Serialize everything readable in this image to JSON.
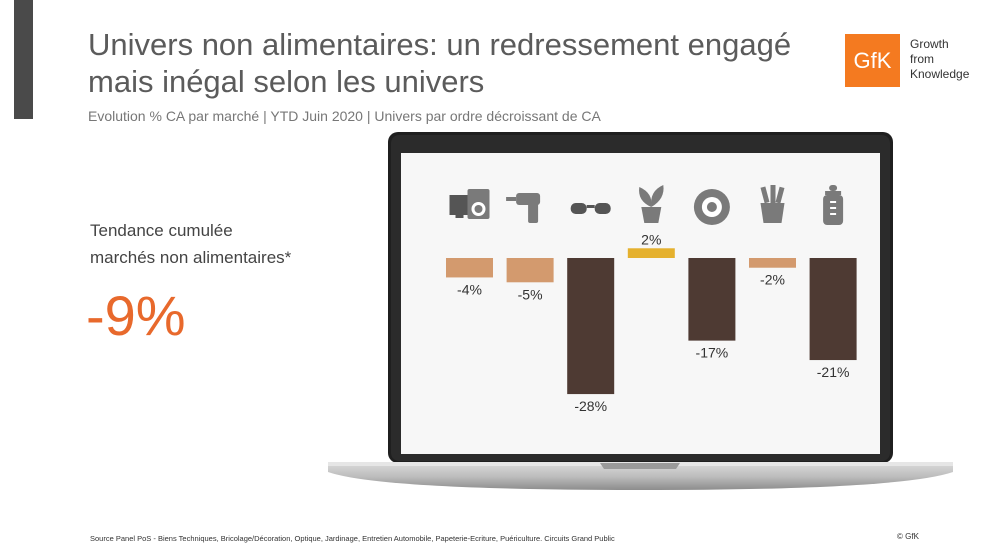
{
  "header": {
    "title": "Univers non alimentaires: un redressement engagé mais inégal selon les univers",
    "subtitle": "Evolution % CA par marché | YTD Juin 2020 | Univers par ordre décroissant de CA"
  },
  "logo": {
    "mark": "GfK",
    "line1": "Growth",
    "line2": "from",
    "line3": "Knowledge",
    "color": "#f47a20"
  },
  "trend": {
    "label_line1": "Tendance cumulée",
    "label_line2": "marchés non alimentaires*",
    "value": "-9%",
    "color": "#e8692c"
  },
  "chart_data": {
    "type": "bar",
    "categories": [
      "washing-machine-tv-icon",
      "drill-icon",
      "glasses-icon",
      "plant-icon",
      "tire-icon",
      "pencil-cup-icon",
      "baby-bottle-icon"
    ],
    "values": [
      -4,
      -5,
      -28,
      2,
      -17,
      -2,
      -21
    ],
    "labels": [
      "-4%",
      "-5%",
      "-28%",
      "2%",
      "-17%",
      "-2%",
      "-21%"
    ],
    "colors": [
      "#d39a6e",
      "#d39a6e",
      "#4e3a33",
      "#e5b12e",
      "#4e3a33",
      "#d39a6e",
      "#4e3a33"
    ],
    "title": "",
    "xlabel": "",
    "ylabel": "",
    "ylim": [
      -30,
      5
    ]
  },
  "footer": {
    "source": "Source Panel PoS - Biens Techniques, Bricolage/Décoration, Optique, Jardinage, Entretien Automobile, Papeterie-Ecriture, Puériculture. Circuits Grand Public",
    "copyright": "© GfK"
  }
}
